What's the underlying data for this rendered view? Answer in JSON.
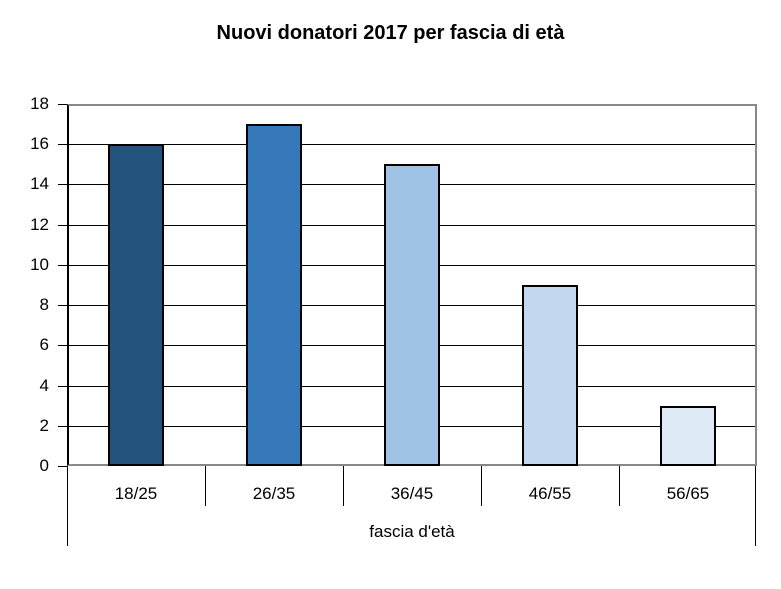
{
  "chart_data": {
    "type": "bar",
    "title": "Nuovi donatori 2017 per fascia di età",
    "xlabel": "fascia d'età",
    "ylabel": "",
    "categories": [
      "18/25",
      "26/35",
      "36/45",
      "46/55",
      "56/65"
    ],
    "values": [
      16,
      17,
      15,
      9,
      3
    ],
    "colors": [
      "#24547e",
      "#3579bb",
      "#a0c3e5",
      "#c2d8ee",
      "#deeaf6"
    ],
    "ylim": [
      0,
      18
    ],
    "yticks": [
      0,
      2,
      4,
      6,
      8,
      10,
      12,
      14,
      16,
      18
    ],
    "grid": true,
    "legend": null
  },
  "yticks_labels": [
    "0",
    "2",
    "4",
    "6",
    "8",
    "10",
    "12",
    "14",
    "16",
    "18"
  ]
}
